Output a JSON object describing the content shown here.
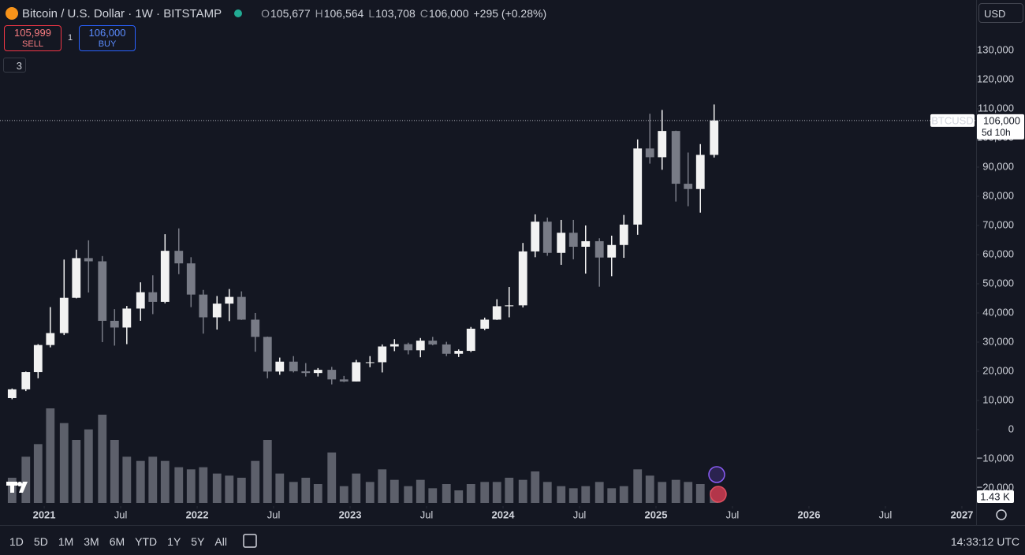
{
  "header": {
    "symbol": "Bitcoin / U.S. Dollar · 1W · BITSTAMP",
    "ohlc": [
      {
        "key": "O",
        "value": "105,677"
      },
      {
        "key": "H",
        "value": "106,564"
      },
      {
        "key": "L",
        "value": "103,708"
      },
      {
        "key": "C",
        "value": "106,000"
      }
    ],
    "change": "+295 (+0.28%)"
  },
  "trade": {
    "sell_price": "105,999",
    "sell": "SELL",
    "qty": "1",
    "buy_price": "106,000",
    "buy": "BUY"
  },
  "indicators_count": "3",
  "currency": "USD",
  "toolbar": {
    "ranges": [
      "1D",
      "5D",
      "1M",
      "3M",
      "6M",
      "YTD",
      "1Y",
      "5Y",
      "All"
    ],
    "clock": "14:33:12 UTC"
  },
  "chart_data": {
    "type": "candlestick",
    "x": [
      2020.79,
      2020.88,
      2020.96,
      2021.04,
      2021.13,
      2021.21,
      2021.29,
      2021.38,
      2021.46,
      2021.54,
      2021.63,
      2021.71,
      2021.79,
      2021.88,
      2021.96,
      2022.04,
      2022.13,
      2022.21,
      2022.29,
      2022.38,
      2022.46,
      2022.54,
      2022.63,
      2022.71,
      2022.79,
      2022.88,
      2022.96,
      2023.04,
      2023.13,
      2023.21,
      2023.29,
      2023.38,
      2023.46,
      2023.54,
      2023.63,
      2023.71,
      2023.79,
      2023.88,
      2023.96,
      2024.04,
      2024.13,
      2024.21,
      2024.29,
      2024.38,
      2024.46,
      2024.54,
      2024.63,
      2024.71,
      2024.79,
      2024.88,
      2024.96,
      2025.04,
      2025.13,
      2025.21,
      2025.29,
      2025.38
    ],
    "open": [
      10800,
      13800,
      19700,
      29000,
      33100,
      45200,
      58800,
      57700,
      37300,
      35000,
      41500,
      47100,
      43800,
      61300,
      57000,
      46300,
      38500,
      43200,
      45500,
      37700,
      31800,
      19900,
      23300,
      20000,
      19400,
      20500,
      17200,
      16500,
      23100,
      23100,
      28500,
      29300,
      27200,
      30500,
      29200,
      26000,
      27000,
      34600,
      37700,
      42300,
      42600,
      61100,
      71300,
      60600,
      67500,
      62700,
      64600,
      59000,
      63300,
      70300,
      96400,
      93400,
      102400,
      84300,
      82500,
      94200
    ],
    "high": [
      14100,
      19900,
      29300,
      42000,
      58300,
      61700,
      64900,
      59500,
      41300,
      42400,
      50500,
      52900,
      67000,
      69000,
      59100,
      47900,
      45800,
      48200,
      47400,
      40000,
      31900,
      24700,
      25200,
      22800,
      21100,
      21500,
      18400,
      23900,
      25200,
      29200,
      31000,
      29800,
      31400,
      31800,
      30100,
      27500,
      35200,
      38400,
      44700,
      48900,
      64000,
      73800,
      72700,
      71900,
      71900,
      70000,
      65600,
      66500,
      73600,
      99500,
      108300,
      109600,
      102500,
      95000,
      97900,
      111500
    ],
    "low": [
      10400,
      13200,
      17600,
      28200,
      32400,
      45000,
      47000,
      30000,
      28800,
      29300,
      37300,
      39600,
      43300,
      53300,
      42000,
      32900,
      34300,
      37200,
      37600,
      26700,
      17600,
      18800,
      19600,
      18200,
      18200,
      15500,
      16300,
      16500,
      21400,
      19600,
      26900,
      25800,
      24800,
      28900,
      25200,
      24900,
      26600,
      34100,
      37600,
      38500,
      41900,
      59100,
      59600,
      56500,
      58400,
      53500,
      49000,
      52600,
      58900,
      66800,
      91200,
      89100,
      78200,
      76600,
      74400,
      93300
    ],
    "close": [
      13800,
      19700,
      29000,
      33100,
      45200,
      58800,
      57700,
      37300,
      35000,
      41500,
      47100,
      43800,
      61300,
      57000,
      46300,
      38500,
      43200,
      45500,
      37700,
      31800,
      19900,
      23300,
      20000,
      19400,
      20500,
      17200,
      16500,
      23100,
      23100,
      28500,
      29300,
      27200,
      30500,
      29200,
      26000,
      27000,
      34600,
      37700,
      42300,
      42600,
      61100,
      71300,
      60600,
      67500,
      62700,
      64600,
      59000,
      63300,
      70300,
      96400,
      93400,
      102400,
      84300,
      82500,
      94200,
      106000
    ],
    "volume": [
      12,
      22,
      28,
      45,
      38,
      30,
      35,
      42,
      30,
      22,
      20,
      22,
      20,
      17,
      16,
      17,
      14,
      13,
      12,
      20,
      30,
      14,
      10,
      12,
      9,
      24,
      8,
      14,
      10,
      16,
      11,
      8,
      11,
      7,
      9,
      6,
      9,
      10,
      10,
      12,
      11,
      15,
      10,
      8,
      7,
      8,
      10,
      7,
      8,
      16,
      13,
      10,
      11,
      10,
      9,
      6
    ],
    "volume_lim": [
      0,
      60
    ],
    "up_color": "#f2f2f2",
    "down_color": "#787b86",
    "volume_color": "#5d606b",
    "xlim": [
      2020.711,
      2027.093
    ],
    "xticks": [
      {
        "value": 2021,
        "label": "2021"
      },
      {
        "value": 2021.5,
        "label": "Jul"
      },
      {
        "value": 2022,
        "label": "2022"
      },
      {
        "value": 2022.5,
        "label": "Jul"
      },
      {
        "value": 2023,
        "label": "2023"
      },
      {
        "value": 2023.5,
        "label": "Jul"
      },
      {
        "value": 2024,
        "label": "2024"
      },
      {
        "value": 2024.5,
        "label": "Jul"
      },
      {
        "value": 2025,
        "label": "2025"
      },
      {
        "value": 2025.5,
        "label": "Jul"
      },
      {
        "value": 2026,
        "label": "2026"
      },
      {
        "value": 2026.5,
        "label": "Jul"
      },
      {
        "value": 2027,
        "label": "2027"
      }
    ],
    "ylim": [
      -25700,
      139200
    ],
    "yticks": [
      {
        "value": -20000,
        "label": "−20,000"
      },
      {
        "value": -10000,
        "label": "−10,000"
      },
      0,
      {
        "value": 10000,
        "label": "10,000"
      },
      {
        "value": 20000,
        "label": "20,000"
      },
      {
        "value": 30000,
        "label": "30,000"
      },
      {
        "value": 40000,
        "label": "40,000"
      },
      {
        "value": 50000,
        "label": "50,000"
      },
      {
        "value": 60000,
        "label": "60,000"
      },
      {
        "value": 70000,
        "label": "70,000"
      },
      {
        "value": 80000,
        "label": "80,000"
      },
      {
        "value": 90000,
        "label": "90,000"
      },
      {
        "value": 100000,
        "label": "100,000"
      },
      {
        "value": 110000,
        "label": "110,000"
      },
      {
        "value": 120000,
        "label": "120,000"
      },
      {
        "value": 130000,
        "label": "130,000"
      }
    ],
    "last_price": {
      "value": 106000,
      "label": "106,000"
    },
    "symbol_label": "BTCUSD",
    "countdown": "5d 10h",
    "last_volume": "1.43 K"
  }
}
